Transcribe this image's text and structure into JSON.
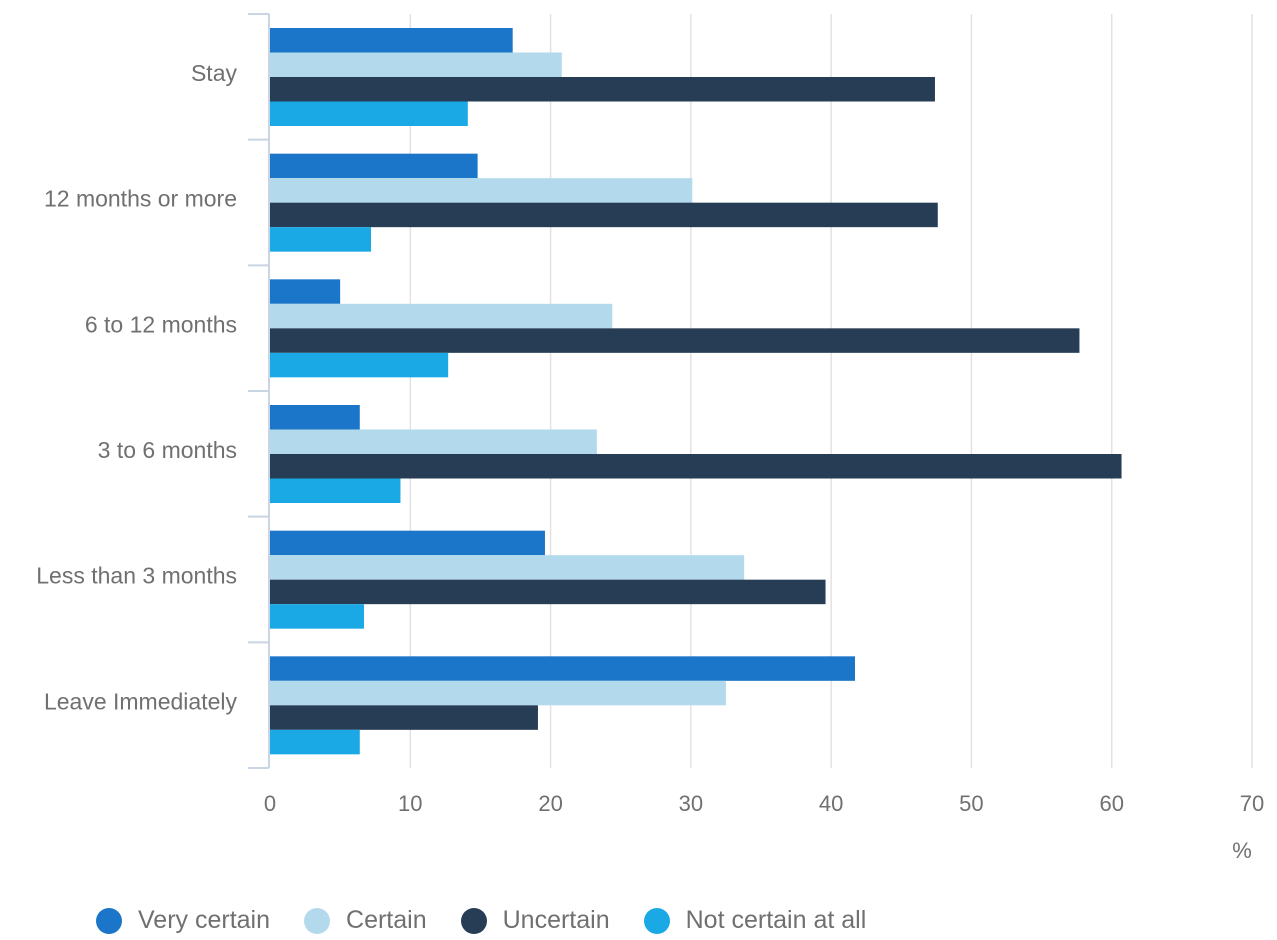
{
  "chart_data": {
    "type": "bar",
    "orientation": "horizontal",
    "categories": [
      "Stay",
      "12 months or more",
      "6 to 12 months",
      "3 to 6 months",
      "Less than 3 months",
      "Leave Immediately"
    ],
    "series": [
      {
        "name": "Very certain",
        "color": "#1b75c8",
        "values": [
          17.3,
          14.8,
          5.0,
          6.4,
          19.6,
          41.7
        ]
      },
      {
        "name": "Certain",
        "color": "#b3daec",
        "values": [
          20.8,
          30.1,
          24.4,
          23.3,
          33.8,
          32.5
        ]
      },
      {
        "name": "Uncertain",
        "color": "#273c55",
        "values": [
          47.4,
          47.6,
          57.7,
          60.7,
          39.6,
          19.1
        ]
      },
      {
        "name": "Not certain at all",
        "color": "#1aa9e5",
        "values": [
          14.1,
          7.2,
          12.7,
          9.3,
          6.7,
          6.4
        ]
      }
    ],
    "xlim": [
      0,
      70
    ],
    "xticks": [
      "0",
      "10",
      "20",
      "30",
      "40",
      "50",
      "60",
      "70"
    ],
    "xunit": "%",
    "grid": true,
    "legend_position": "bottom"
  }
}
